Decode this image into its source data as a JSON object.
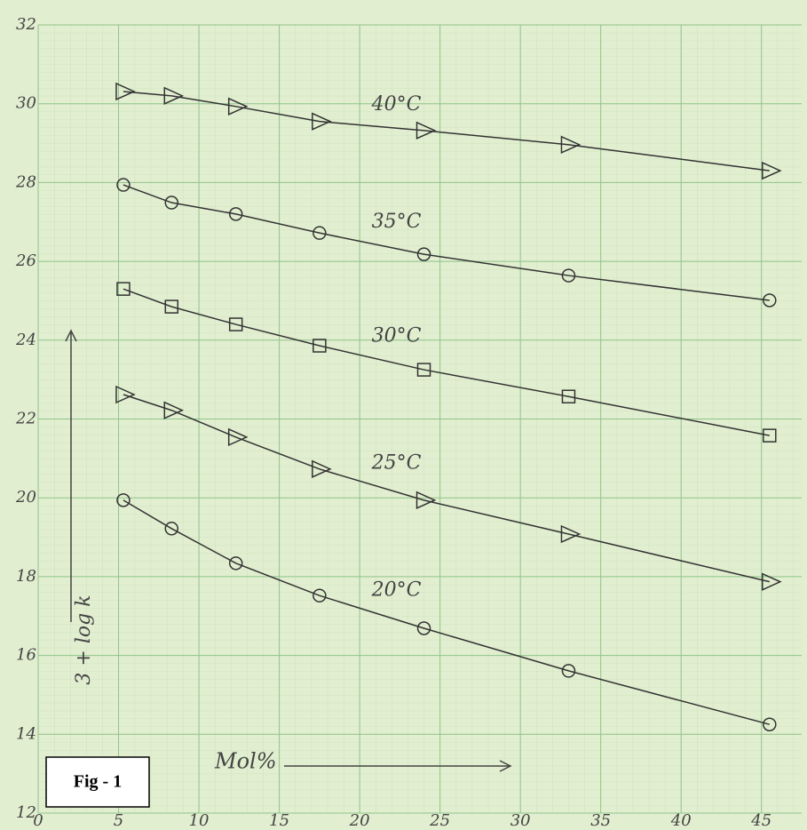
{
  "chart_data": {
    "type": "line",
    "xlabel": "Mol%",
    "ylabel": "3 + log k",
    "figure_label": "Fig - 1",
    "x": [
      5.3,
      8.3,
      12.3,
      17.5,
      24,
      33,
      45.5
    ],
    "series": [
      {
        "name": "40°C",
        "color": "#333333",
        "marker": "triangle",
        "values": [
          30.31,
          30.2,
          29.93,
          29.55,
          29.32,
          28.96,
          28.3
        ]
      },
      {
        "name": "35°C",
        "color": "#333333",
        "marker": "circle",
        "values": [
          27.94,
          27.49,
          27.2,
          26.72,
          26.18,
          25.64,
          25.01
        ]
      },
      {
        "name": "30°C",
        "color": "#333333",
        "marker": "square",
        "values": [
          25.3,
          24.85,
          24.4,
          23.86,
          23.25,
          22.57,
          21.58
        ]
      },
      {
        "name": "25°C",
        "color": "#333333",
        "marker": "triangle",
        "values": [
          22.62,
          22.22,
          21.54,
          20.73,
          19.94,
          19.08,
          17.87
        ]
      },
      {
        "name": "20°C",
        "color": "#333333",
        "marker": "circle",
        "values": [
          19.94,
          19.22,
          18.34,
          17.52,
          16.69,
          15.61,
          14.25
        ]
      }
    ],
    "xlim": [
      0,
      47.5
    ],
    "ylim": [
      12,
      32
    ],
    "xticks": [
      0,
      5,
      10,
      15,
      20,
      25,
      30,
      35,
      40,
      45
    ],
    "yticks": [
      12,
      14,
      16,
      18,
      20,
      22,
      24,
      26,
      28,
      30,
      32
    ],
    "grid": true
  }
}
